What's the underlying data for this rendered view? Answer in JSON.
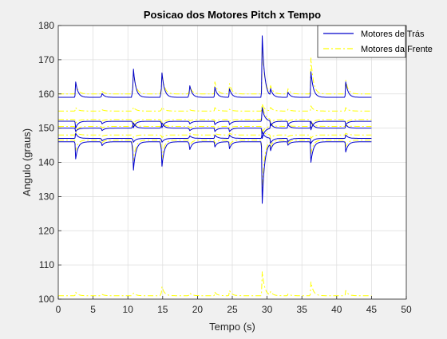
{
  "chart_data": {
    "type": "line",
    "title": "Posicao dos Motores Pitch x Tempo",
    "xlabel": "Tempo (s)",
    "ylabel": "Angulo (graus)",
    "xlim": [
      0,
      50
    ],
    "ylim": [
      100,
      180
    ],
    "xticks": [
      0,
      5,
      10,
      15,
      20,
      25,
      30,
      35,
      40,
      45,
      50
    ],
    "yticks": [
      100,
      110,
      120,
      130,
      140,
      150,
      160,
      170,
      180
    ],
    "grid": true,
    "legend_position": "top-right",
    "events": [
      2.5,
      6.2,
      10.7,
      14.8,
      18.8,
      22.5,
      24.6,
      29.3,
      30.5,
      33.0,
      36.3,
      41.3
    ],
    "series": [
      {
        "name": "Motores de Trás",
        "color": "#0000cc",
        "style": "solid",
        "lines": [
          {
            "base": 159,
            "amplitudes": [
              4.5,
              1.5,
              11,
              9.5,
              4.5,
              3,
              2.5,
              18,
              2,
              1.5,
              7.5,
              4.5
            ]
          },
          {
            "base": 152,
            "amplitudes": [
              -2,
              -1,
              -2.5,
              -2.5,
              -1,
              -1,
              -1,
              4,
              -1.5,
              -1,
              -2.5,
              -1
            ]
          },
          {
            "base": 150,
            "amplitudes": [
              -1,
              -1,
              2,
              2,
              -1,
              -1,
              -1,
              -3,
              1.5,
              1,
              2,
              1
            ]
          },
          {
            "base": 147,
            "amplitudes": [
              1.5,
              -1,
              -1.5,
              -1.5,
              1,
              1,
              1,
              2,
              -1.5,
              -1,
              -1.5,
              1
            ]
          },
          {
            "base": 146,
            "amplitudes": [
              -5,
              -1.5,
              -11,
              -9.5,
              -3,
              -1.5,
              -2,
              -18,
              -2,
              -1,
              -6,
              -3
            ]
          }
        ]
      },
      {
        "name": "Motores da Frente",
        "color": "#ffff00",
        "style": "dashdot",
        "lines": [
          {
            "base": 160,
            "amplitudes": [
              3,
              1,
              9,
              8,
              3,
              3.5,
              3,
              14,
              2,
              1.5,
              10.5,
              4
            ]
          },
          {
            "base": 155,
            "amplitudes": [
              1,
              0.5,
              1.5,
              1.5,
              0.5,
              1,
              0.5,
              2,
              1,
              0.5,
              1.5,
              1
            ]
          },
          {
            "base": 152.5,
            "amplitudes": [
              -1,
              -0.5,
              -1.5,
              -2,
              -0.5,
              -0.5,
              -0.5,
              4.5,
              -1,
              -0.5,
              -2,
              -1
            ]
          },
          {
            "base": 150.5,
            "amplitudes": [
              -1.5,
              -0.5,
              1.5,
              1.5,
              -0.5,
              -0.5,
              -0.5,
              -2,
              1,
              0.5,
              1.5,
              0.5
            ]
          },
          {
            "base": 148,
            "amplitudes": [
              1,
              -0.5,
              -1,
              -1,
              0.5,
              0.5,
              0.5,
              1.5,
              -1,
              -0.5,
              -1,
              0.5
            ]
          },
          {
            "base": 146.5,
            "amplitudes": [
              -3,
              -1,
              -8,
              -7,
              -2,
              -1,
              -1.5,
              -14,
              -1.5,
              -1,
              -4,
              -2
            ]
          },
          {
            "base": 101,
            "amplitudes": [
              1,
              0.5,
              1,
              3.5,
              1,
              1,
              1.5,
              7,
              1,
              0.5,
              4,
              1.5
            ]
          }
        ]
      }
    ]
  }
}
